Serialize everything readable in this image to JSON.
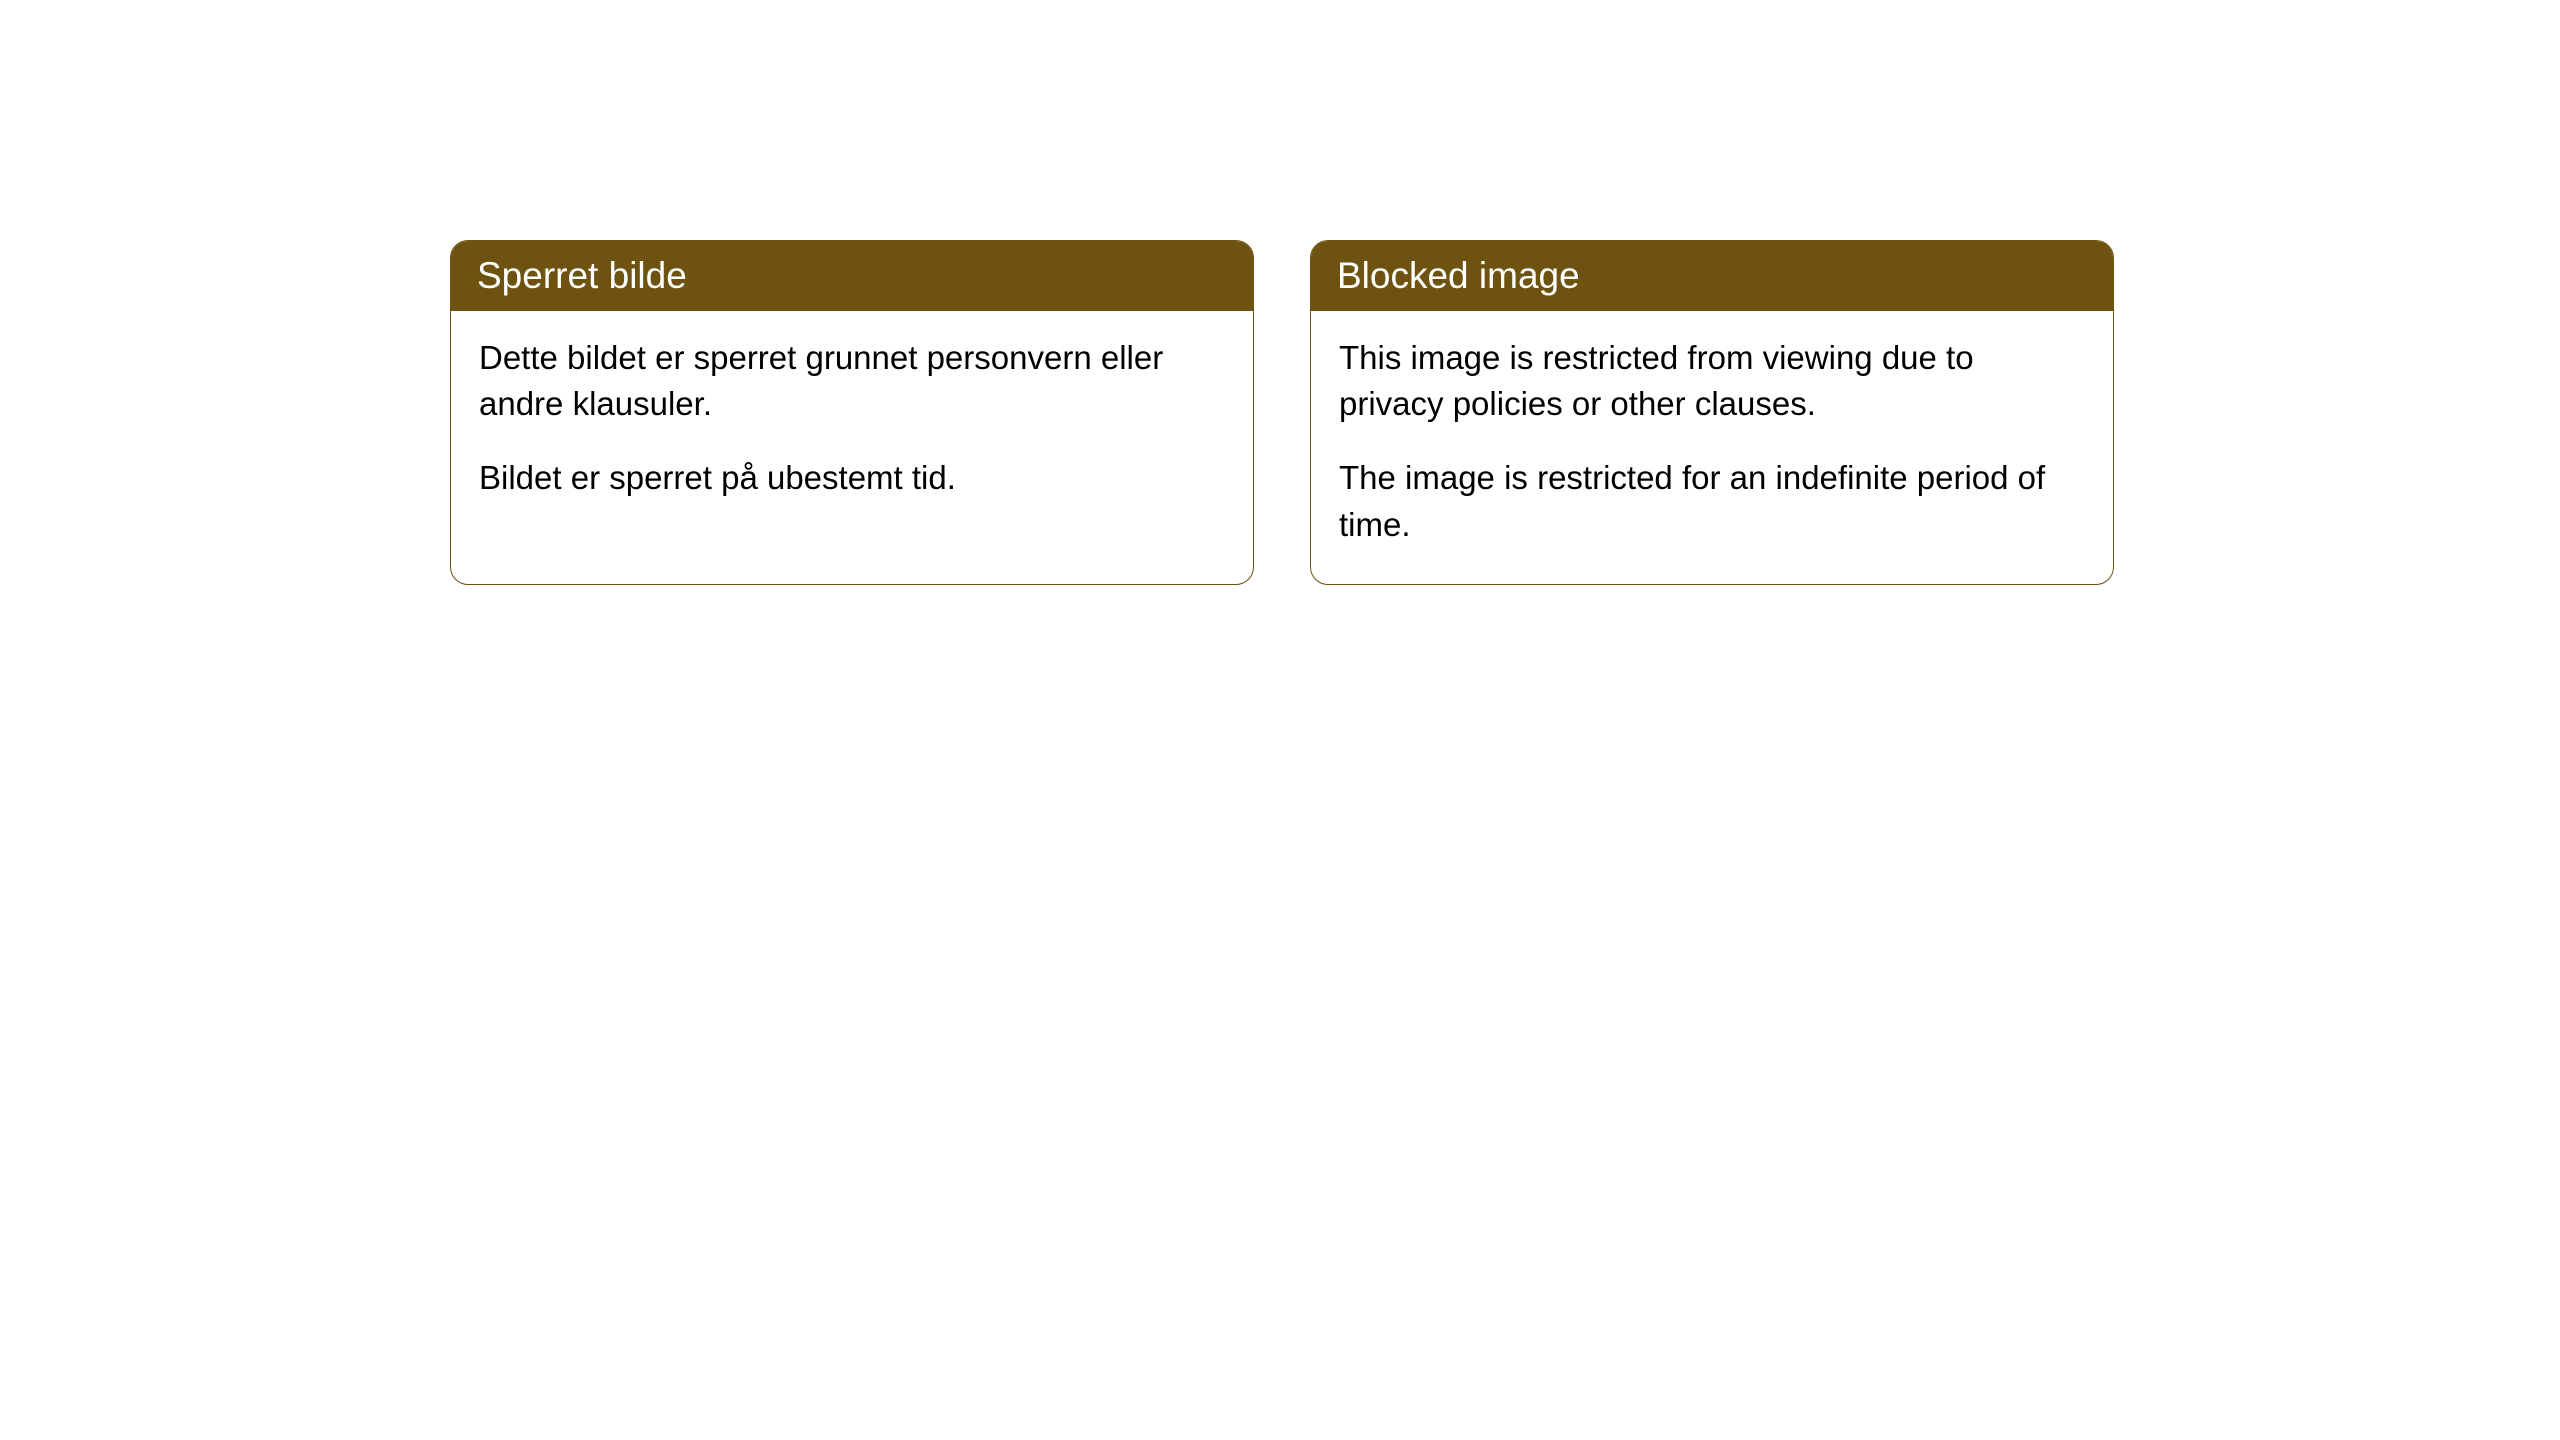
{
  "cards": [
    {
      "title": "Sperret bilde",
      "paragraph1": "Dette bildet er sperret grunnet personvern eller andre klausuler.",
      "paragraph2": "Bildet er sperret på ubestemt tid."
    },
    {
      "title": "Blocked image",
      "paragraph1": "This image is restricted from viewing due to privacy policies or other clauses.",
      "paragraph2": "The image is restricted for an indefinite period of time."
    }
  ],
  "style": {
    "header_bg": "#6e5210",
    "header_text_color": "#ffffff",
    "border_color": "#6e5210",
    "body_bg": "#ffffff",
    "body_text_color": "#000000",
    "border_radius": 18,
    "title_fontsize": 37,
    "body_fontsize": 33
  }
}
